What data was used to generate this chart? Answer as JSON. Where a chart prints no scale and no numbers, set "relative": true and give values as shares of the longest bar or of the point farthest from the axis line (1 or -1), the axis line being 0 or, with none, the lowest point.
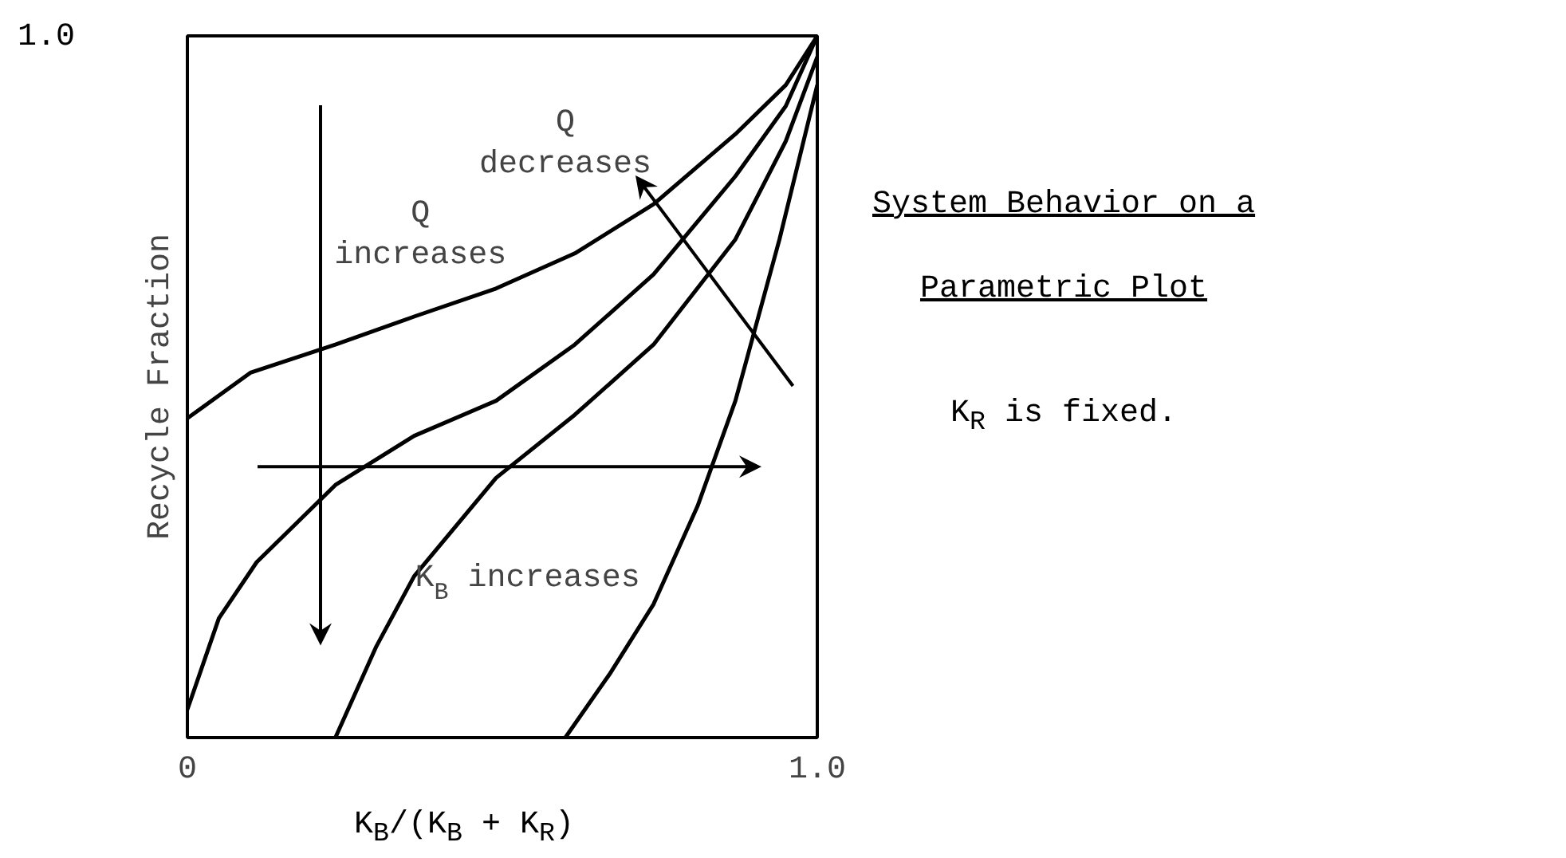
{
  "chart_data": {
    "type": "line",
    "xlabel": "K$_{B}$/(K$_{B}$ + K$_{R}$)",
    "ylabel": "Recycle Fraction",
    "xlim": [
      0,
      1
    ],
    "relative": true,
    "xticks": [
      {
        "value": 0,
        "label": "0"
      },
      {
        "value": 1,
        "label": "1.0"
      }
    ],
    "marker": "none",
    "line_style": "solid",
    "series": [
      {
        "color": "#000000",
        "x": [
          0,
          0.1,
          0.235,
          0.36,
          0.49,
          0.615,
          0.74,
          0.87,
          0.95,
          1
        ],
        "values": [
          0.455,
          0.52,
          0.56,
          0.6,
          0.64,
          0.69,
          0.76,
          0.86,
          0.93,
          1
        ]
      },
      {
        "color": "#000000",
        "x": [
          0,
          0.05,
          0.11,
          0.235,
          0.36,
          0.49,
          0.615,
          0.74,
          0.87,
          0.95,
          1
        ],
        "values": [
          0.04,
          0.17,
          0.25,
          0.36,
          0.43,
          0.48,
          0.56,
          0.66,
          0.8,
          0.9,
          1
        ]
      },
      {
        "color": "#000000",
        "x": [
          0.235,
          0.3,
          0.36,
          0.49,
          0.615,
          0.74,
          0.87,
          0.95,
          1
        ],
        "values": [
          0,
          0.13,
          0.23,
          0.37,
          0.46,
          0.56,
          0.71,
          0.85,
          0.97
        ]
      },
      {
        "color": "#000000",
        "x": [
          0.6,
          0.67,
          0.74,
          0.81,
          0.87,
          0.94,
          1
        ],
        "values": [
          0,
          0.09,
          0.19,
          0.33,
          0.48,
          0.71,
          0.93
        ]
      }
    ],
    "annotations": [
      "Q\nincreases",
      "Q\ndecreases",
      "K$_{B}$ increases",
      "System Behavior on a",
      "Parametric Plot",
      "K$_{R}$ is fixed.",
      "1.0"
    ]
  }
}
